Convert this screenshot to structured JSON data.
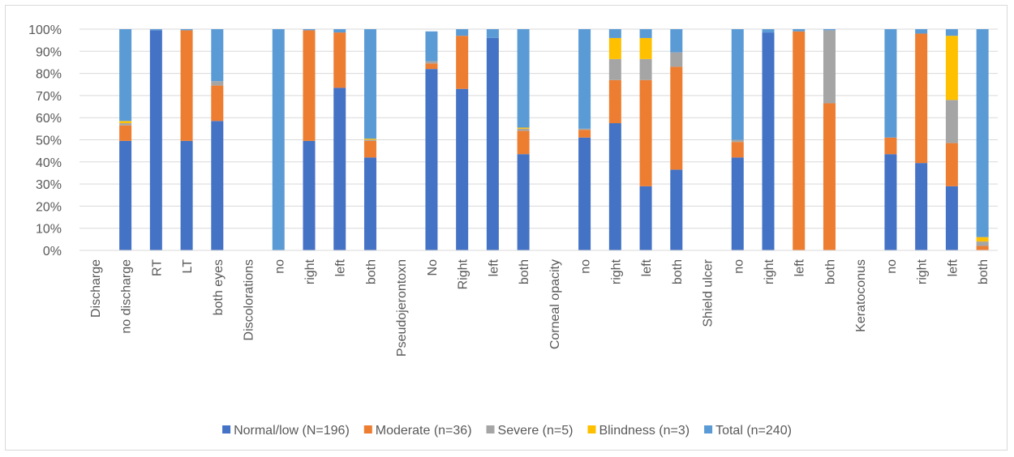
{
  "chart_data": {
    "type": "bar",
    "stacked": true,
    "title": "",
    "xlabel": "",
    "ylabel": "",
    "ylim": [
      0,
      100
    ],
    "y_ticks": [
      "0%",
      "10%",
      "20%",
      "30%",
      "40%",
      "50%",
      "60%",
      "70%",
      "80%",
      "90%",
      "100%"
    ],
    "grid": true,
    "legend_position": "bottom",
    "categories": [
      "Discharge",
      "no discharge",
      "RT",
      "LT",
      "both eyes",
      "Discolorations",
      "no",
      "right",
      "left",
      "both",
      "Pseudojerontoxn",
      "No",
      "Right",
      "left",
      "both",
      "Corneal opacity",
      "no",
      "right",
      "left",
      "both",
      "Shield ulcer",
      "no",
      "right",
      "left",
      "both",
      "Keratoconus",
      "no",
      "right",
      "left",
      "both"
    ],
    "series": [
      {
        "name": "Normal/low (N=196)",
        "color": "#4472c4",
        "values": [
          0,
          49.5,
          99.5,
          49.5,
          58.5,
          0,
          0,
          49.5,
          73.5,
          42,
          0,
          82,
          73,
          96,
          43.5,
          0,
          51,
          57.5,
          29,
          36.5,
          0,
          42,
          98.5,
          0,
          0,
          0,
          43.5,
          39.5,
          29,
          0
        ]
      },
      {
        "name": "Moderate (n=36)",
        "color": "#ed7d31",
        "values": [
          0,
          7,
          0,
          50,
          16,
          0,
          0,
          50,
          25,
          7.5,
          0,
          2.5,
          24,
          0,
          10.5,
          0,
          3.5,
          19.5,
          48,
          46.5,
          0,
          7,
          0,
          99,
          66.5,
          0,
          7.5,
          58.5,
          19.5,
          2
        ]
      },
      {
        "name": "Severe (n=5)",
        "color": "#a5a5a5",
        "values": [
          0,
          1,
          0,
          0,
          2,
          0,
          0,
          0,
          0,
          0.5,
          0,
          1,
          0,
          0,
          1,
          0,
          0.5,
          9.5,
          9.5,
          6.5,
          0,
          1,
          0,
          0,
          33,
          0,
          0,
          0,
          19.5,
          2
        ]
      },
      {
        "name": "Blindness (n=3)",
        "color": "#ffc000",
        "values": [
          0,
          1,
          0,
          0,
          0,
          0,
          0,
          0,
          0,
          0.5,
          0,
          0,
          0,
          0,
          0.5,
          0,
          0,
          9.5,
          9.5,
          0,
          0,
          0,
          0,
          0,
          0,
          0,
          0,
          0,
          29,
          2
        ]
      },
      {
        "name": "Total (n=240)",
        "color": "#5b9bd5",
        "values": [
          0,
          41.5,
          0.5,
          0.5,
          23.5,
          0,
          100,
          0.5,
          1.5,
          49.5,
          0,
          13.5,
          3,
          4,
          44.5,
          0,
          45,
          4,
          4,
          10.5,
          0,
          50,
          1.5,
          1,
          0.5,
          0,
          49,
          2,
          3,
          94
        ]
      }
    ]
  }
}
